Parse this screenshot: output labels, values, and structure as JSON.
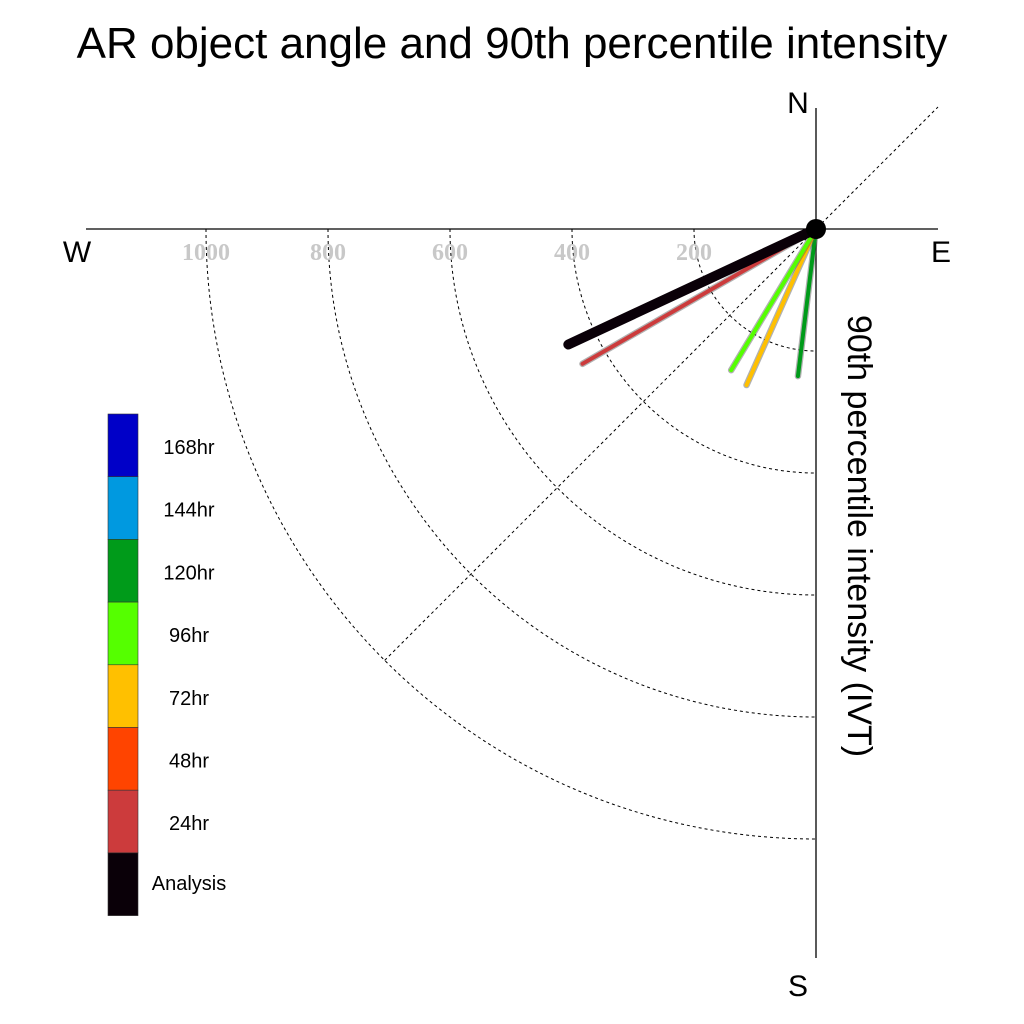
{
  "chart_data": {
    "type": "polar-vector",
    "title": "AR object angle and 90th percentile intensity",
    "radial_label": "90th percentile intensity (IVT)",
    "compass": {
      "north": "N",
      "south": "S",
      "east": "E",
      "west": "W"
    },
    "radial_ticks": [
      200,
      400,
      600,
      800,
      1000
    ],
    "rmax": 1000,
    "series": [
      {
        "name": "Analysis",
        "color": "#0a0008",
        "angle_deg": 245,
        "intensity": 448
      },
      {
        "name": "24hr",
        "color": "#cc3b3c",
        "angle_deg": 240,
        "intensity": 442
      },
      {
        "name": "72hr",
        "color": "#ffc000",
        "angle_deg": 204,
        "intensity": 280
      },
      {
        "name": "96hr",
        "color": "#55ff00",
        "angle_deg": 211,
        "intensity": 270
      },
      {
        "name": "120hr",
        "color": "#009b1a",
        "angle_deg": 187,
        "intensity": 243
      }
    ],
    "legend": [
      {
        "label": "168hr",
        "color": "#0000c8"
      },
      {
        "label": "144hr",
        "color": "#0099e0"
      },
      {
        "label": "120hr",
        "color": "#009b1a"
      },
      {
        "label": "96hr",
        "color": "#55ff00"
      },
      {
        "label": "72hr",
        "color": "#ffc000"
      },
      {
        "label": "48hr",
        "color": "#ff4400"
      },
      {
        "label": "24hr",
        "color": "#cc3b3c"
      },
      {
        "label": "Analysis",
        "color": "#0a0008"
      }
    ],
    "grid": true
  }
}
